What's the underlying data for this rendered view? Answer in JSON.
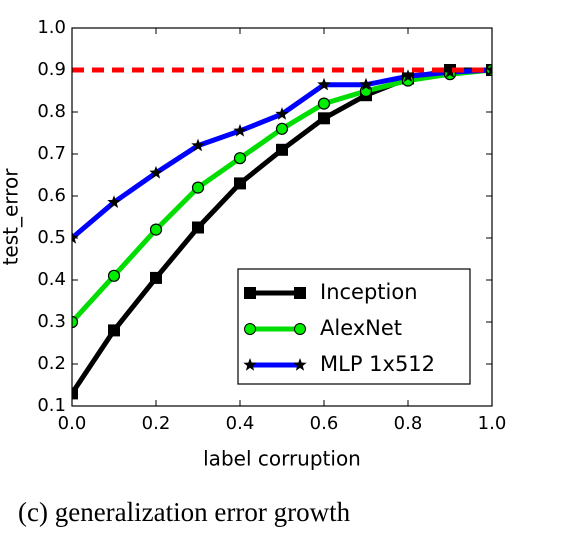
{
  "chart_data": {
    "type": "line",
    "x_label": "label corruption",
    "y_label": "test_error",
    "caption": "(c) generalization error growth",
    "x": [
      0,
      0.1,
      0.2,
      0.3,
      0.4,
      0.5,
      0.6,
      0.7,
      0.8,
      0.9,
      1
    ],
    "series": [
      {
        "name": "Inception",
        "color": "#000000",
        "marker": "square",
        "marker_color": "#000000",
        "values": [
          0.13,
          0.28,
          0.405,
          0.525,
          0.63,
          0.71,
          0.785,
          0.84,
          0.88,
          0.9,
          0.9
        ]
      },
      {
        "name": "AlexNet",
        "color": "#00dd00",
        "marker": "circle",
        "marker_color": "#00ee00",
        "values": [
          0.3,
          0.41,
          0.52,
          0.62,
          0.69,
          0.76,
          0.82,
          0.85,
          0.875,
          0.89,
          0.9
        ]
      },
      {
        "name": "MLP 1x512",
        "color": "#0000ff",
        "marker": "star",
        "marker_color": "#000000",
        "values": [
          0.5,
          0.585,
          0.655,
          0.72,
          0.755,
          0.795,
          0.865,
          0.865,
          0.885,
          0.895,
          0.9
        ]
      }
    ],
    "hline": 0.9,
    "hline_color": "#ff0000",
    "xlim": [
      0,
      1
    ],
    "ylim": [
      0.1,
      1
    ],
    "xticks": [
      {
        "value": 0,
        "label": "0.0"
      },
      0.2,
      0.4,
      0.6,
      0.8,
      {
        "value": 1,
        "label": "1.0"
      }
    ],
    "yticks": [
      0.1,
      0.2,
      0.3,
      0.4,
      0.5,
      0.6,
      0.7,
      0.8,
      0.9,
      {
        "value": 1,
        "label": "1.0"
      }
    ],
    "legend": "lower right",
    "grid": false
  }
}
